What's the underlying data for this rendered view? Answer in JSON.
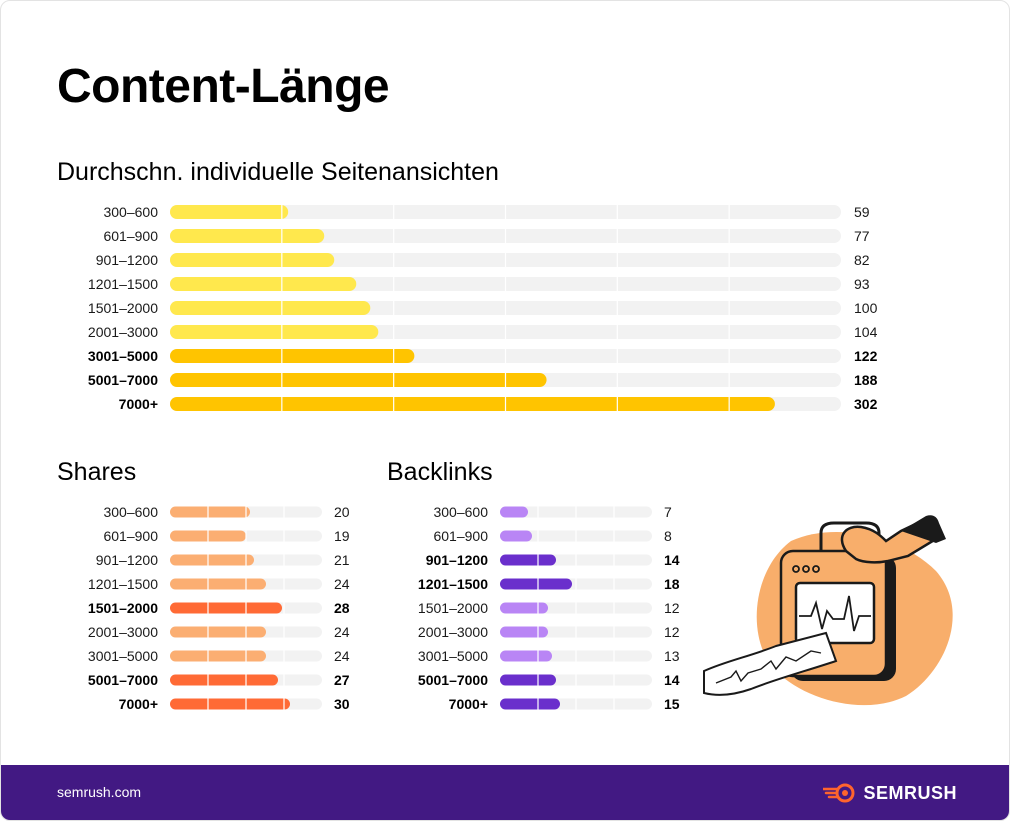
{
  "header": {
    "title": "Content-Länge"
  },
  "footer": {
    "url": "semrush.com",
    "brand": "SEMRUSH"
  },
  "colors": {
    "yellow_light": "#FFE84D",
    "yellow_bold": "#FFC400",
    "orange_light": "#FBAE72",
    "orange_bold": "#FF6A35",
    "purple_light": "#B985F5",
    "purple_bold": "#6A2FCC",
    "track": "#F2F2F2",
    "footer_bg": "#421983"
  },
  "chart_data": [
    {
      "type": "bar",
      "orientation": "horizontal",
      "title": "Durchschn. individuelle Seitenansichten",
      "categories": [
        "300–600",
        "601–900",
        "901–1200",
        "1201–1500",
        "1501–2000",
        "2001–3000",
        "3001–5000",
        "5001–7000",
        "7000+"
      ],
      "values": [
        59,
        77,
        82,
        93,
        100,
        104,
        122,
        188,
        302
      ],
      "highlighted": [
        false,
        false,
        false,
        false,
        false,
        false,
        true,
        true,
        true
      ],
      "xlim": [
        0,
        335
      ]
    },
    {
      "type": "bar",
      "orientation": "horizontal",
      "title": "Shares",
      "categories": [
        "300–600",
        "601–900",
        "901–1200",
        "1201–1500",
        "1501–2000",
        "2001–3000",
        "3001–5000",
        "5001–7000",
        "7000+"
      ],
      "values": [
        20,
        19,
        21,
        24,
        28,
        24,
        24,
        27,
        30
      ],
      "highlighted": [
        false,
        false,
        false,
        false,
        true,
        false,
        false,
        true,
        true
      ],
      "xlim": [
        0,
        38
      ]
    },
    {
      "type": "bar",
      "orientation": "horizontal",
      "title": "Backlinks",
      "categories": [
        "300–600",
        "601–900",
        "901–1200",
        "1201–1500",
        "1501–2000",
        "2001–3000",
        "3001–5000",
        "5001–7000",
        "7000+"
      ],
      "values": [
        7,
        8,
        14,
        18,
        12,
        12,
        13,
        14,
        15
      ],
      "highlighted": [
        false,
        false,
        true,
        true,
        false,
        false,
        false,
        true,
        true
      ],
      "xlim": [
        0,
        38
      ]
    }
  ]
}
